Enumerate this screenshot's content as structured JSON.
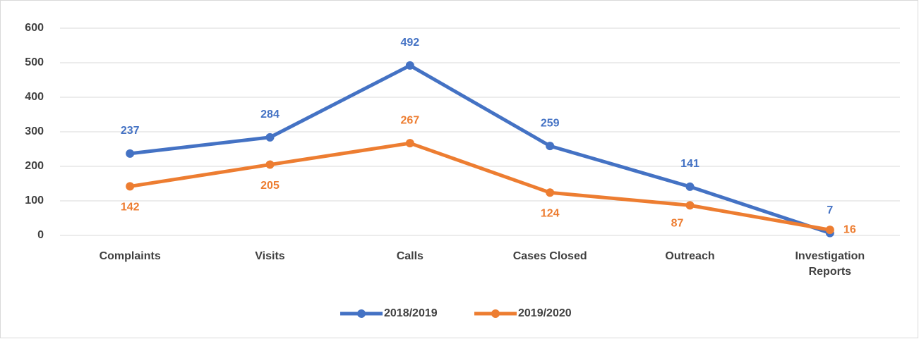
{
  "chart_data": {
    "type": "line",
    "categories": [
      "Complaints",
      "Visits",
      "Calls",
      "Cases Closed",
      "Outreach",
      "Investigation Reports"
    ],
    "series": [
      {
        "name": "2018/2019",
        "color": "#4472c4",
        "values": [
          237,
          284,
          492,
          259,
          141,
          7
        ]
      },
      {
        "name": "2019/2020",
        "color": "#ed7d31",
        "values": [
          142,
          205,
          267,
          124,
          87,
          16
        ]
      }
    ],
    "ylim": [
      0,
      600
    ],
    "yticks": [
      0,
      100,
      200,
      300,
      400,
      500,
      600
    ],
    "grid": true,
    "legend": "bottom"
  }
}
